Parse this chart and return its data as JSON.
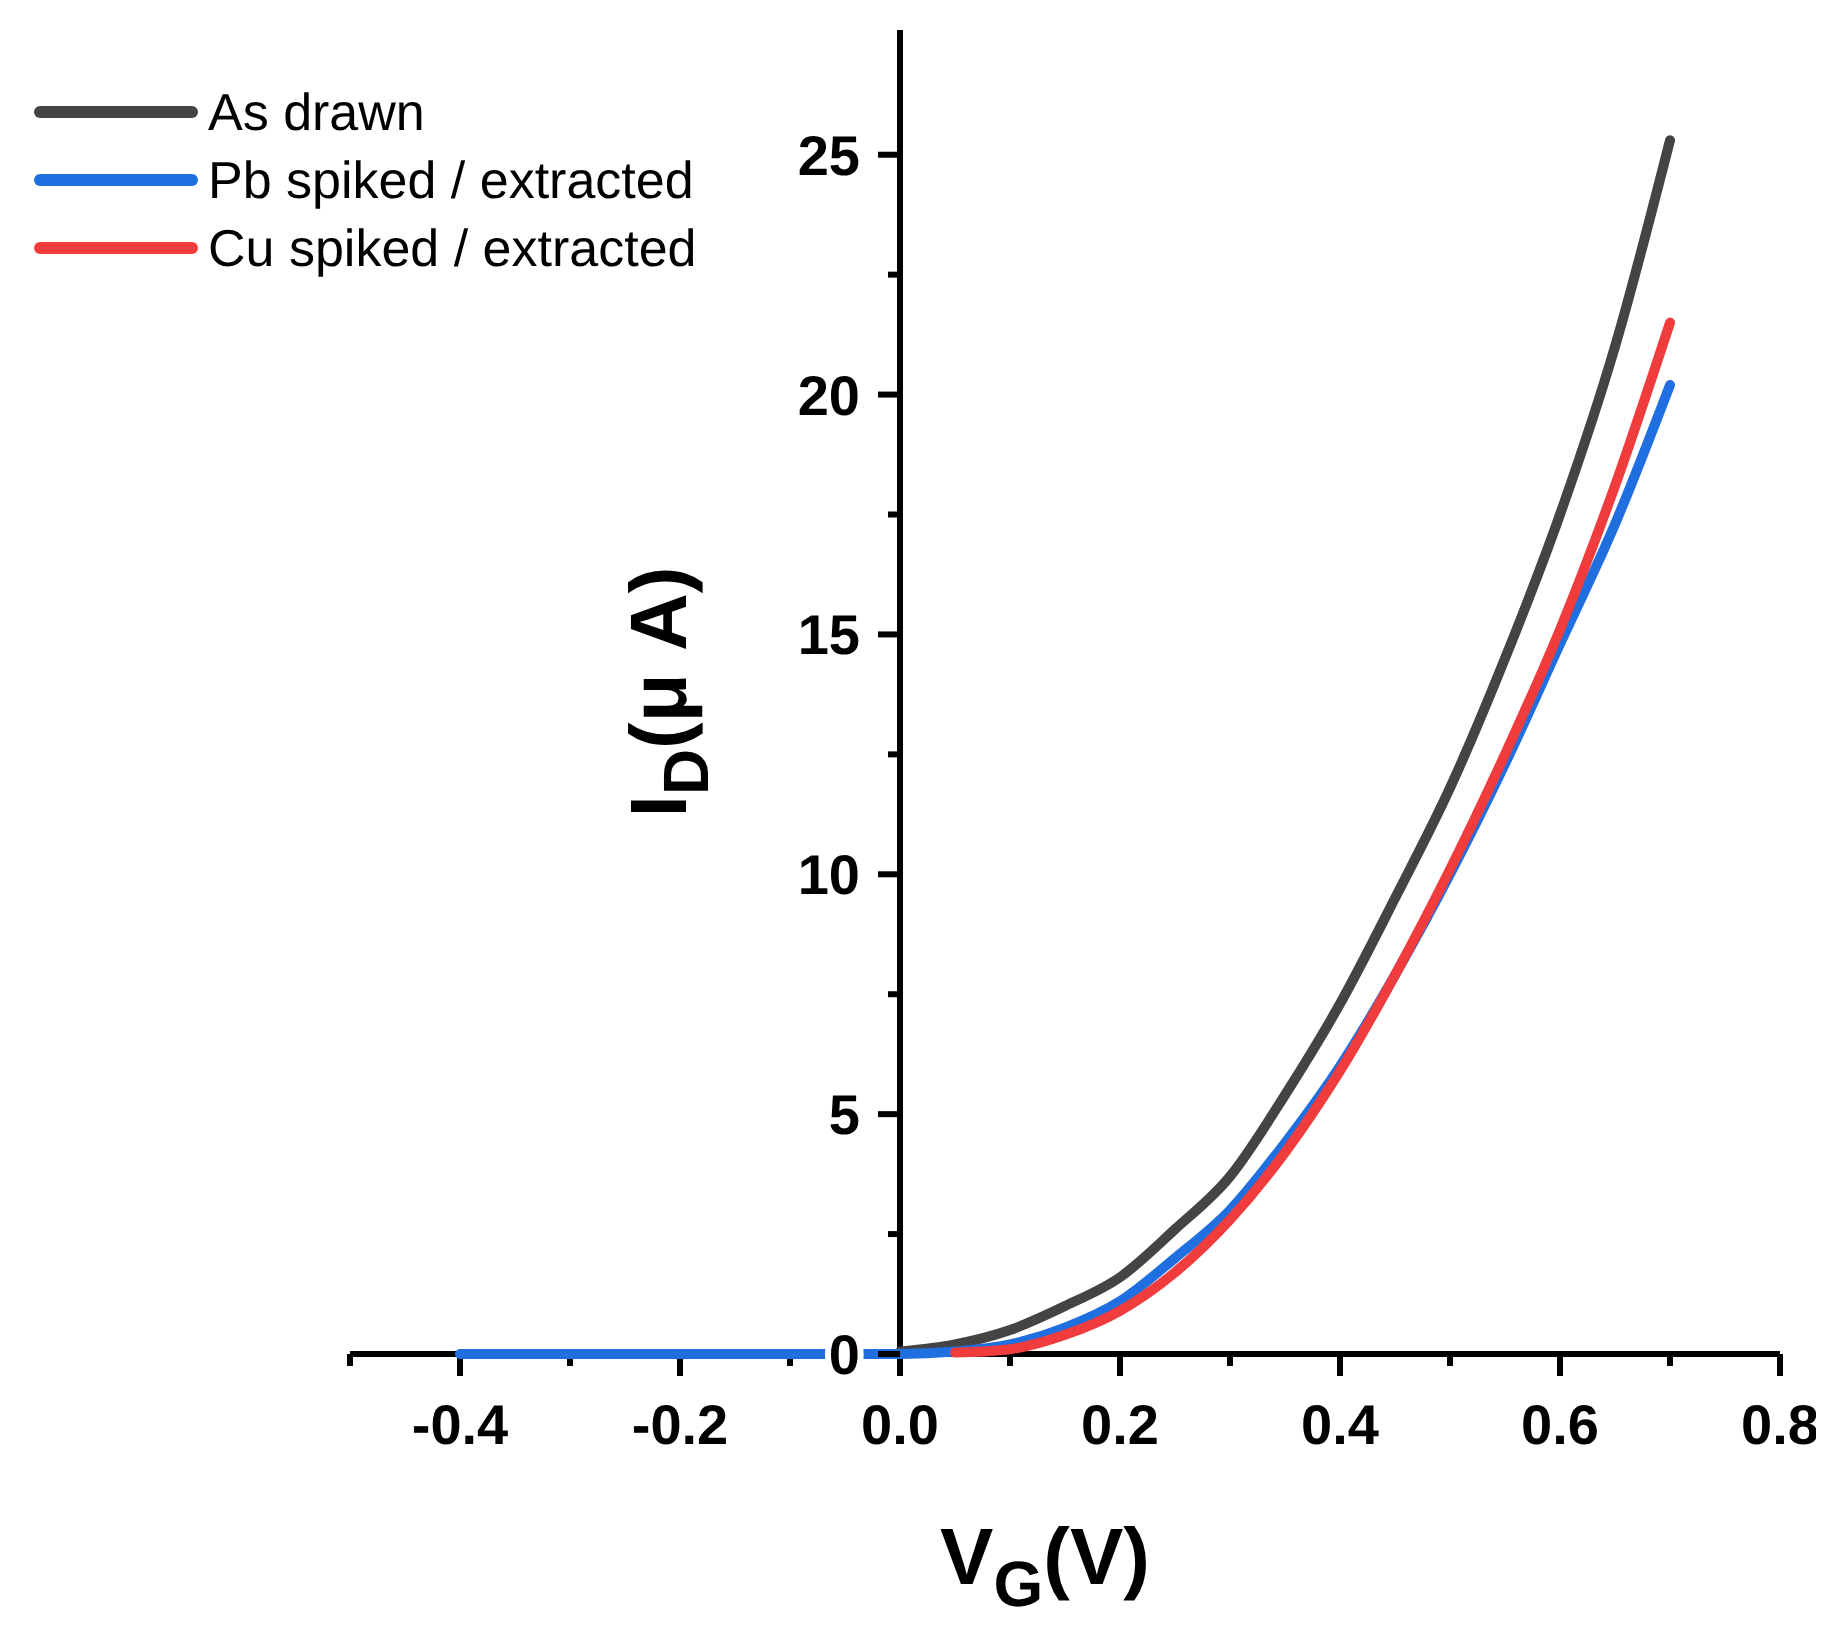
{
  "chart_data": {
    "type": "line",
    "xlabel": "V$_{G}$(V)",
    "ylabel": "I$_{D}$(μ A)",
    "xlim": [
      -0.5,
      0.8
    ],
    "ylim": [
      0,
      27.6
    ],
    "xticks": [
      {
        "value": -0.5,
        "label": null
      },
      -0.4,
      {
        "value": -0.3,
        "label": null
      },
      -0.2,
      {
        "value": -0.1,
        "label": null
      },
      {
        "value": 0,
        "label": "0.0"
      },
      {
        "value": 0.1,
        "label": null
      },
      0.2,
      {
        "value": 0.3,
        "label": null
      },
      0.4,
      {
        "value": 0.5,
        "label": null
      },
      0.6,
      {
        "value": 0.7,
        "label": null
      },
      0.8
    ],
    "yticks": [
      0,
      {
        "value": 2.5,
        "label": null
      },
      5,
      {
        "value": 7.5,
        "label": null
      },
      10,
      {
        "value": 12.5,
        "label": null
      },
      15,
      {
        "value": 17.5,
        "label": null
      },
      20,
      {
        "value": 22.5,
        "label": null
      },
      25
    ],
    "x": [
      -0.4,
      -0.2,
      0,
      0.05,
      0.1,
      0.15,
      0.2,
      0.25,
      0.3,
      0.35,
      0.4,
      0.45,
      0.5,
      0.55,
      0.6,
      0.65,
      0.7
    ],
    "grid": false,
    "legend": "top left",
    "marker": "none",
    "line_style": "solid",
    "series": [
      {
        "name": "As drawn",
        "color": "#444444",
        "values": [
          null,
          null,
          0.05,
          0.2,
          0.5,
          1.0,
          1.6,
          2.6,
          3.7,
          5.4,
          7.3,
          9.5,
          11.8,
          14.5,
          17.5,
          21,
          25.3
        ]
      },
      {
        "name": "Pb spiked / extracted",
        "color": "#1f6fe0",
        "values": [
          0,
          0,
          0,
          0.05,
          0.2,
          0.55,
          1.1,
          2.0,
          3.0,
          4.4,
          6.0,
          7.9,
          10.0,
          12.3,
          14.8,
          17.3,
          20.2
        ]
      },
      {
        "name": "Cu spiked / extracted",
        "color": "#f03c3c",
        "values": [
          null,
          null,
          null,
          0.03,
          0.1,
          0.4,
          0.9,
          1.7,
          2.8,
          4.2,
          5.9,
          7.9,
          10.1,
          12.5,
          15.1,
          18.1,
          21.5
        ]
      }
    ]
  }
}
